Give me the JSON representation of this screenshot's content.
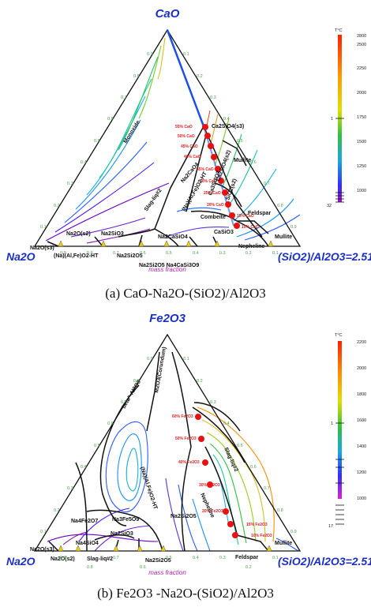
{
  "panels": [
    {
      "id": "a",
      "title": "CaO",
      "left_vertex": "Na2O",
      "right_vertex": "(SiO2)/Al2O3=2.51",
      "axis_note": "mass fraction",
      "caption": "(a) CaO-Na2O-(SiO2)/Al2O3",
      "temperature_unit": "T°C",
      "colorbar": {
        "ticks": [
          "2800",
          "2500",
          "2250",
          "2000",
          "1750",
          "1500",
          "1250",
          "1000"
        ],
        "bottom_label": "32",
        "marker_label": "1"
      },
      "phases": {
        "monoxide": "Monoxide",
        "ca2sio4": "Ca2SiO4(s3)",
        "mullite_top": "Mullite",
        "nacao": "Na2CaO4",
        "slag": "Slag-liq#2",
        "na_alfeo2": "(Na)(Al,Fe)O2-HT",
        "combeite": "Combeite",
        "feldspar": "Feldspar",
        "casio3": "CaSiO3",
        "nepheline": "Nepheline",
        "mullite_right": "Mullite",
        "na2o_s2": "Na2O(s2)",
        "na2sio3": "Na2SiO3",
        "na2casio4": "Na2CaSiO4",
        "na2o_s3": "Na2O(s3)",
        "bottom_alfeo2": "(Na)(Al,Fe)O2-HT",
        "na2si2o5": "Na2Si2O5",
        "na2si2o5_b": "Na2Si2O5",
        "na4casi3": "Na2Si2O5 Na4CaSi3O9",
        "ca3si2o7": "Ca3Si2O7",
        "sio2": "SiO2(s2)",
        "ca2sio4b": "Ca2SiO4(s2)"
      },
      "percent_labels": [
        "55% CaO",
        "50% CaO",
        "45% CaO",
        "40% CaO",
        "35% CaO",
        "30% CaO",
        "25% CaO",
        "20% CaO",
        "15% CaO",
        "10% CaO"
      ],
      "ticks_left": [
        "0.9",
        "0.8",
        "0.7",
        "0.6",
        "0.5",
        "0.4",
        "0.3",
        "0.2",
        "0.1"
      ],
      "ticks_right": [
        "0.1",
        "0.2",
        "0.3",
        "0.4",
        "0.5",
        "0.6",
        "0.7",
        "0.8",
        "0.9"
      ],
      "ticks_bottom": [
        "0.9",
        "0.8",
        "0.7",
        "0.6",
        "0.5",
        "0.4",
        "0.3",
        "0.2",
        "0.1"
      ]
    },
    {
      "id": "b",
      "title": "Fe2O3",
      "left_vertex": "Na2O",
      "right_vertex": "(SiO2)/Al2O3=2.51",
      "axis_note": "mass fraction",
      "caption": "(b) Fe2O3 -Na2O-(SiO2)/Al2O3",
      "temperature_unit": "T°C",
      "colorbar": {
        "ticks": [
          "2200",
          "2000",
          "1800",
          "1600",
          "1400",
          "1200",
          "1000"
        ],
        "bottom_label": "17",
        "marker_label": "1"
      },
      "phases": {
        "corundum": "M2O3(Corundum)",
        "beta": "beta''-Al2O3",
        "na_alfeo2": "(Na)(Al,Fe)O2-HT",
        "slag": "Slag-liq#2",
        "nafe": "Na4Fe2O7",
        "nafe2": "Na3Fe5O9",
        "nepheline": "Nepheline",
        "na2si2o5": "Na2Si2O5",
        "na2o_s3": "Na2O(s3)",
        "na2o_s2": "Na2O(s2)",
        "slag2": "Slag-liq#2",
        "na2sio3": "Na2SiO3",
        "na4sio4": "Na4SiO4",
        "na2si2o5_b": "Na2Si2O5",
        "feldspar": "Feldspar",
        "mullite": "Mullite"
      },
      "percent_labels": [
        "60% Fe2O3",
        "50% Fe2O3",
        "40% Fe2O3",
        "30% Fe2O3",
        "20% Fe2O3",
        "15% Fe2O3",
        "10% Fe2O3"
      ],
      "ticks_left": [
        "0.9",
        "0.8",
        "0.7",
        "0.6",
        "0.5",
        "0.4",
        "0.3",
        "0.2",
        "0.1"
      ],
      "ticks_right": [
        "0.1",
        "0.2",
        "0.3",
        "0.4",
        "0.5",
        "0.6",
        "0.7",
        "0.8",
        "0.9"
      ],
      "ticks_bottom": [
        "0.9",
        "0.8",
        "0.7",
        "0.6",
        "0.5",
        "0.4",
        "0.3",
        "0.2",
        "0.1"
      ]
    }
  ],
  "colors": {
    "title_blue": "#1b2fc4",
    "point_red": "#e81010",
    "tick_green": "#4a9e4a",
    "mass_fraction": "#b01fb0"
  }
}
